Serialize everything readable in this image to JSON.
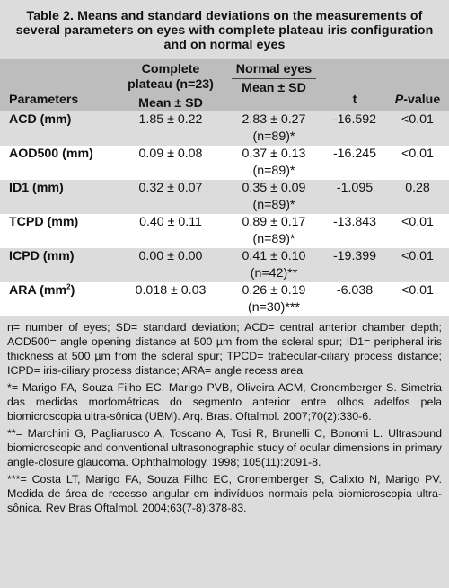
{
  "title": "Table 2. Means and standard deviations on the measurements of several parameters on eyes with complete plateau iris configuration and on normal eyes",
  "headers": {
    "parameters": "Parameters",
    "complete": "Complete plateau (n=23)",
    "complete_sub": "Mean ± SD",
    "normal": "Normal eyes",
    "normal_sub": "Mean ± SD",
    "t": "t",
    "p_italic": "P",
    "p_rest": "-value"
  },
  "rows": [
    {
      "param": "ACD (mm)",
      "complete": "1.85 ± 0.22",
      "normal": "2.83 ± 0.27",
      "normal_n": "(n=89)*",
      "t": "-16.592",
      "p": "<0.01"
    },
    {
      "param": "AOD500 (mm)",
      "complete": "0.09 ± 0.08",
      "normal": "0.37 ± 0.13",
      "normal_n": "(n=89)*",
      "t": "-16.245",
      "p": "<0.01"
    },
    {
      "param": "ID1 (mm)",
      "complete": "0.32 ± 0.07",
      "normal": "0.35 ± 0.09",
      "normal_n": "(n=89)*",
      "t": "-1.095",
      "p": "0.28"
    },
    {
      "param": "TCPD (mm)",
      "complete": "0.40 ± 0.11",
      "normal": "0.89 ± 0.17",
      "normal_n": "(n=89)*",
      "t": "-13.843",
      "p": "<0.01"
    },
    {
      "param": "ICPD (mm)",
      "complete": "0.00 ± 0.00",
      "normal": "0.41 ± 0.10",
      "normal_n": "(n=42)**",
      "t": "-19.399",
      "p": "<0.01"
    },
    {
      "param_main": "ARA (mm",
      "param_sup": "2",
      "param_end": ")",
      "complete": "0.018 ± 0.03",
      "normal": "0.26 ± 0.19",
      "normal_n": "(n=30)***",
      "t": "-6.038",
      "p": "<0.01"
    }
  ],
  "notes": [
    "n= number of eyes; SD= standard deviation; ACD= central anterior chamber depth; AOD500= angle opening distance at 500 µm from the scleral spur; ID1= peripheral iris thickness at 500 µm from the scleral spur; TPCD= trabecular-ciliary process distance; ICPD= iris-ciliary process distance; ARA= angle recess area",
    "*= Marigo FA, Souza Filho EC, Marigo PVB, Oliveira ACM, Cronemberger S. Simetria das medidas morfométricas do segmento anterior entre olhos adelfos pela biomicroscopia ultra-sônica (UBM). Arq. Bras. Oftalmol. 2007;70(2):330-6.",
    "**= Marchini G, Pagliarusco A, Toscano A, Tosi R, Brunelli C, Bonomi L. Ultrasound biomicroscopic and conventional ultrasonographic study of ocular dimensions in primary angle-closure glaucoma. Ophthalmology. 1998; 105(11):2091-8.",
    "***= Costa LT, Marigo FA, Souza Filho EC, Cronemberger S, Calixto N, Marigo PV. Medida de área de recesso angular em indivíduos normais pela biomicroscopia ultra-sônica. Rev Bras Oftalmol. 2004;63(7-8):378-83."
  ]
}
